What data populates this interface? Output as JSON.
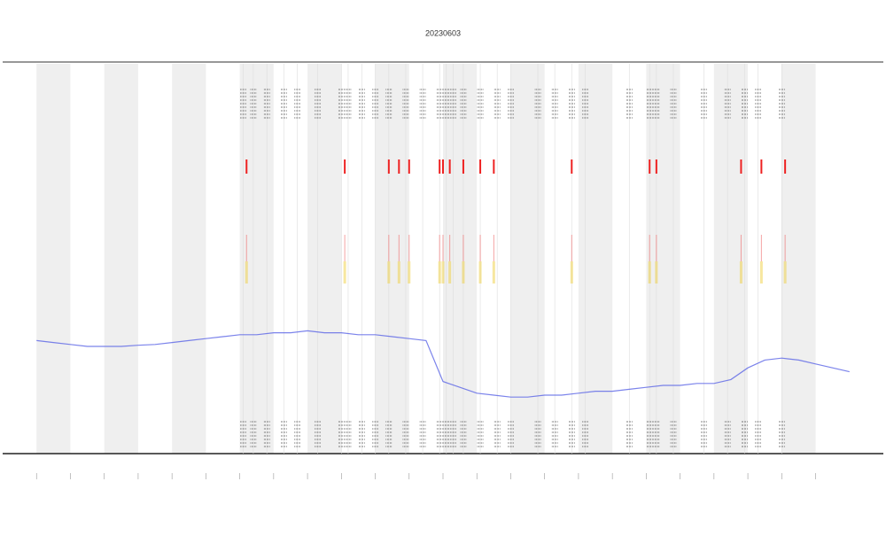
{
  "chart_data": {
    "type": "line",
    "title": "20230603",
    "xlim": [
      -1,
      25
    ],
    "xticks": [
      0,
      1,
      2,
      3,
      4,
      5,
      6,
      7,
      8,
      9,
      10,
      11,
      12,
      13,
      14,
      15,
      16,
      17,
      18,
      19,
      20,
      21,
      22,
      23
    ],
    "ylim": [
      0,
      100
    ],
    "series": [
      {
        "color": "#5a64e6",
        "x": [
          0,
          0.5,
          1,
          1.5,
          2,
          2.5,
          3,
          3.5,
          4,
          4.5,
          5,
          5.5,
          6,
          6.5,
          7,
          7.5,
          8,
          8.5,
          9,
          9.5,
          10,
          10.5,
          11,
          11.5,
          12,
          12.5,
          13,
          13.5,
          14,
          14.5,
          15,
          15.5,
          16,
          16.5,
          17,
          17.5,
          18,
          18.5,
          19,
          19.5,
          20,
          20.5,
          21,
          21.5,
          22,
          22.5,
          23,
          23.5,
          24
        ],
        "values": [
          29,
          28.5,
          28,
          27.5,
          27.5,
          27.5,
          27.8,
          28,
          28.5,
          29,
          29.5,
          30,
          30.5,
          30.5,
          31,
          31,
          31.5,
          31,
          31,
          30.5,
          30.5,
          30,
          29.5,
          29,
          18.5,
          17,
          15.5,
          15,
          14.5,
          14.5,
          15,
          15,
          15.5,
          16,
          16,
          16.5,
          17,
          17.5,
          17.5,
          18,
          18,
          19,
          22,
          24,
          24.5,
          24,
          23,
          22,
          21
        ]
      }
    ],
    "events": [
      6.1,
      6.4,
      6.8,
      7.3,
      7.7,
      8.3,
      9.0,
      9.2,
      9.6,
      10.0,
      10.4,
      10.9,
      11.4,
      11.9,
      12.1,
      12.3,
      12.6,
      13.1,
      13.6,
      14.0,
      14.8,
      15.3,
      15.8,
      16.2,
      17.5,
      18.1,
      18.3,
      18.8,
      19.7,
      20.4,
      20.9,
      21.3,
      22.0
    ],
    "alerts": [
      6.2,
      9.1,
      10.4,
      10.7,
      11.0,
      11.9,
      12.0,
      12.2,
      12.6,
      13.1,
      13.5,
      15.8,
      18.1,
      18.3,
      20.8,
      21.4,
      22.1
    ]
  }
}
